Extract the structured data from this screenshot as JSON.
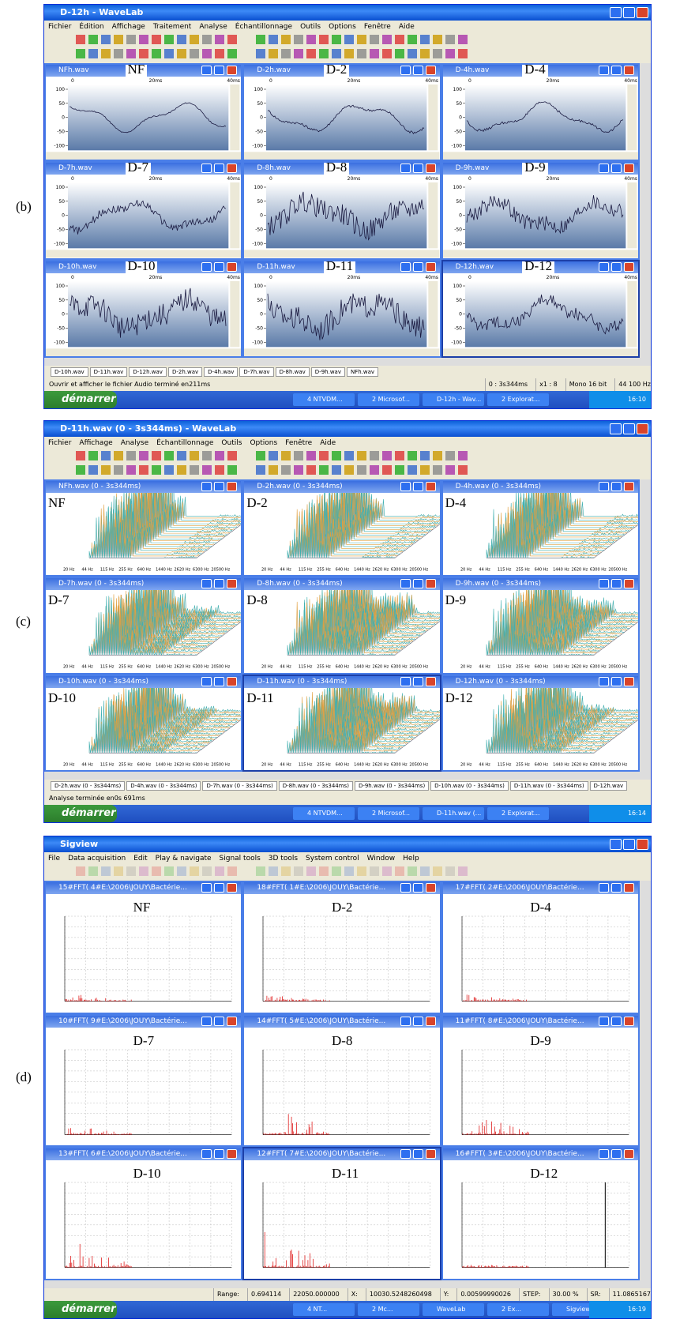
{
  "panels": [
    {
      "label": "(b)",
      "kind": "wave",
      "window_title": "D-12h - WaveLab",
      "menu": [
        "Fichier",
        "Édition",
        "Affichage",
        "Traitement",
        "Analyse",
        "Échantillonnage",
        "Outils",
        "Options",
        "Fenêtre",
        "Aide"
      ],
      "subwindows": [
        {
          "title": "NFh.wav",
          "label": "NF"
        },
        {
          "title": "D-2h.wav",
          "label": "D-2"
        },
        {
          "title": "D-4h.wav",
          "label": "D-4"
        },
        {
          "title": "D-7h.wav",
          "label": "D-7"
        },
        {
          "title": "D-8h.wav",
          "label": "D-8"
        },
        {
          "title": "D-9h.wav",
          "label": "D-9"
        },
        {
          "title": "D-10h.wav",
          "label": "D-10"
        },
        {
          "title": "D-11h.wav",
          "label": "D-11"
        },
        {
          "title": "D-12h.wav",
          "label": "D-12"
        }
      ],
      "axis_labels": [
        "100",
        "50",
        "0",
        "-50",
        "-100"
      ],
      "ruler_labels": [
        "0",
        "20ms",
        "40ms"
      ],
      "tabs": [
        "D-10h.wav",
        "D-11h.wav",
        "D-12h.wav",
        "D-2h.wav",
        "D-4h.wav",
        "D-7h.wav",
        "D-8h.wav",
        "D-9h.wav",
        "NFh.wav"
      ],
      "status": "Ouvrir et afficher le fichier Audio terminé en211ms",
      "status_fields": [
        "0 : 3s344ms",
        "x1 : 8",
        "Mono 16 bit",
        "44 100 Hz"
      ],
      "taskbar": {
        "start": "démarrer",
        "items": [
          "4 NTVDM...",
          "2 Microsof...",
          "D-12h - Wav...",
          "2 Explorat..."
        ],
        "clock": "16:10"
      }
    },
    {
      "label": "(c)",
      "kind": "spectrum",
      "window_title": "D-11h.wav (0 - 3s344ms) - WaveLab",
      "menu": [
        "Fichier",
        "Affichage",
        "Analyse",
        "Échantillonnage",
        "Outils",
        "Options",
        "Fenêtre",
        "Aide"
      ],
      "subwindows": [
        {
          "title": "NFh.wav (0 - 3s344ms)",
          "label": "NF"
        },
        {
          "title": "D-2h.wav (0 - 3s344ms)",
          "label": "D-2"
        },
        {
          "title": "D-4h.wav (0 - 3s344ms)",
          "label": "D-4"
        },
        {
          "title": "D-7h.wav (0 - 3s344ms)",
          "label": "D-7"
        },
        {
          "title": "D-8h.wav (0 - 3s344ms)",
          "label": "D-8"
        },
        {
          "title": "D-9h.wav (0 - 3s344ms)",
          "label": "D-9"
        },
        {
          "title": "D-10h.wav (0 - 3s344ms)",
          "label": "D-10"
        },
        {
          "title": "D-11h.wav (0 - 3s344ms)",
          "label": "D-11"
        },
        {
          "title": "D-12h.wav (0 - 3s344ms)",
          "label": "D-12"
        }
      ],
      "axis_labels": [
        "20 Hz",
        "44 Hz",
        "115 Hz",
        "255 Hz",
        "640 Hz",
        "1440 Hz",
        "2620 Hz",
        "6300 Hz",
        "20500 Hz"
      ],
      "tabs": [
        "D-2h.wav (0 - 3s344ms)",
        "D-4h.wav (0 - 3s344ms)",
        "D-7h.wav (0 - 3s344ms)",
        "D-8h.wav (0 - 3s344ms)",
        "D-9h.wav (0 - 3s344ms)",
        "D-10h.wav (0 - 3s344ms)",
        "D-11h.wav (0 - 3s344ms)",
        "D-12h.wav"
      ],
      "status": "Analyse terminée en0s 691ms",
      "taskbar": {
        "start": "démarrer",
        "items": [
          "4 NTVDM...",
          "2 Microsof...",
          "D-11h.wav (...",
          "2 Explorat..."
        ],
        "clock": "16:14"
      }
    },
    {
      "label": "(d)",
      "kind": "fft",
      "window_title": "Sigview",
      "menu": [
        "File",
        "Data acquisition",
        "Edit",
        "Play & navigate",
        "Signal tools",
        "3D tools",
        "System control",
        "Window",
        "Help"
      ],
      "subwindows": [
        {
          "title": "15#FFT( 4#E:\\2006\\JOUY\\Bactérie...",
          "label": "NF"
        },
        {
          "title": "18#FFT( 1#E:\\2006\\JOUY\\Bactérie...",
          "label": "D-2"
        },
        {
          "title": "17#FFT( 2#E:\\2006\\JOUY\\Bactérie...",
          "label": "D-4"
        },
        {
          "title": "10#FFT( 9#E:\\2006\\JOUY\\Bactérie...",
          "label": "D-7"
        },
        {
          "title": "14#FFT( 5#E:\\2006\\JOUY\\Bactérie...",
          "label": "D-8"
        },
        {
          "title": "11#FFT( 8#E:\\2006\\JOUY\\Bactérie...",
          "label": "D-9"
        },
        {
          "title": "13#FFT( 6#E:\\2006\\JOUY\\Bactérie...",
          "label": "D-10"
        },
        {
          "title": "12#FFT( 7#E:\\2006\\JOUY\\Bactérie...",
          "label": "D-11"
        },
        {
          "title": "16#FFT( 3#E:\\2006\\JOUY\\Bactérie...",
          "label": "D-12"
        }
      ],
      "status_fields": [
        "Range:",
        "0.694114",
        "22050.000000",
        "X:",
        "10030.5248260498",
        "Y:",
        "0.00599990026",
        "STEP:",
        "30.00 %",
        "SR:",
        "11.0865167"
      ],
      "taskbar": {
        "start": "démarrer",
        "items": [
          "4 NT...",
          "2 Mc...",
          "WaveLab",
          "2 Ex...",
          "Sigview"
        ],
        "clock": "16:19"
      }
    }
  ]
}
